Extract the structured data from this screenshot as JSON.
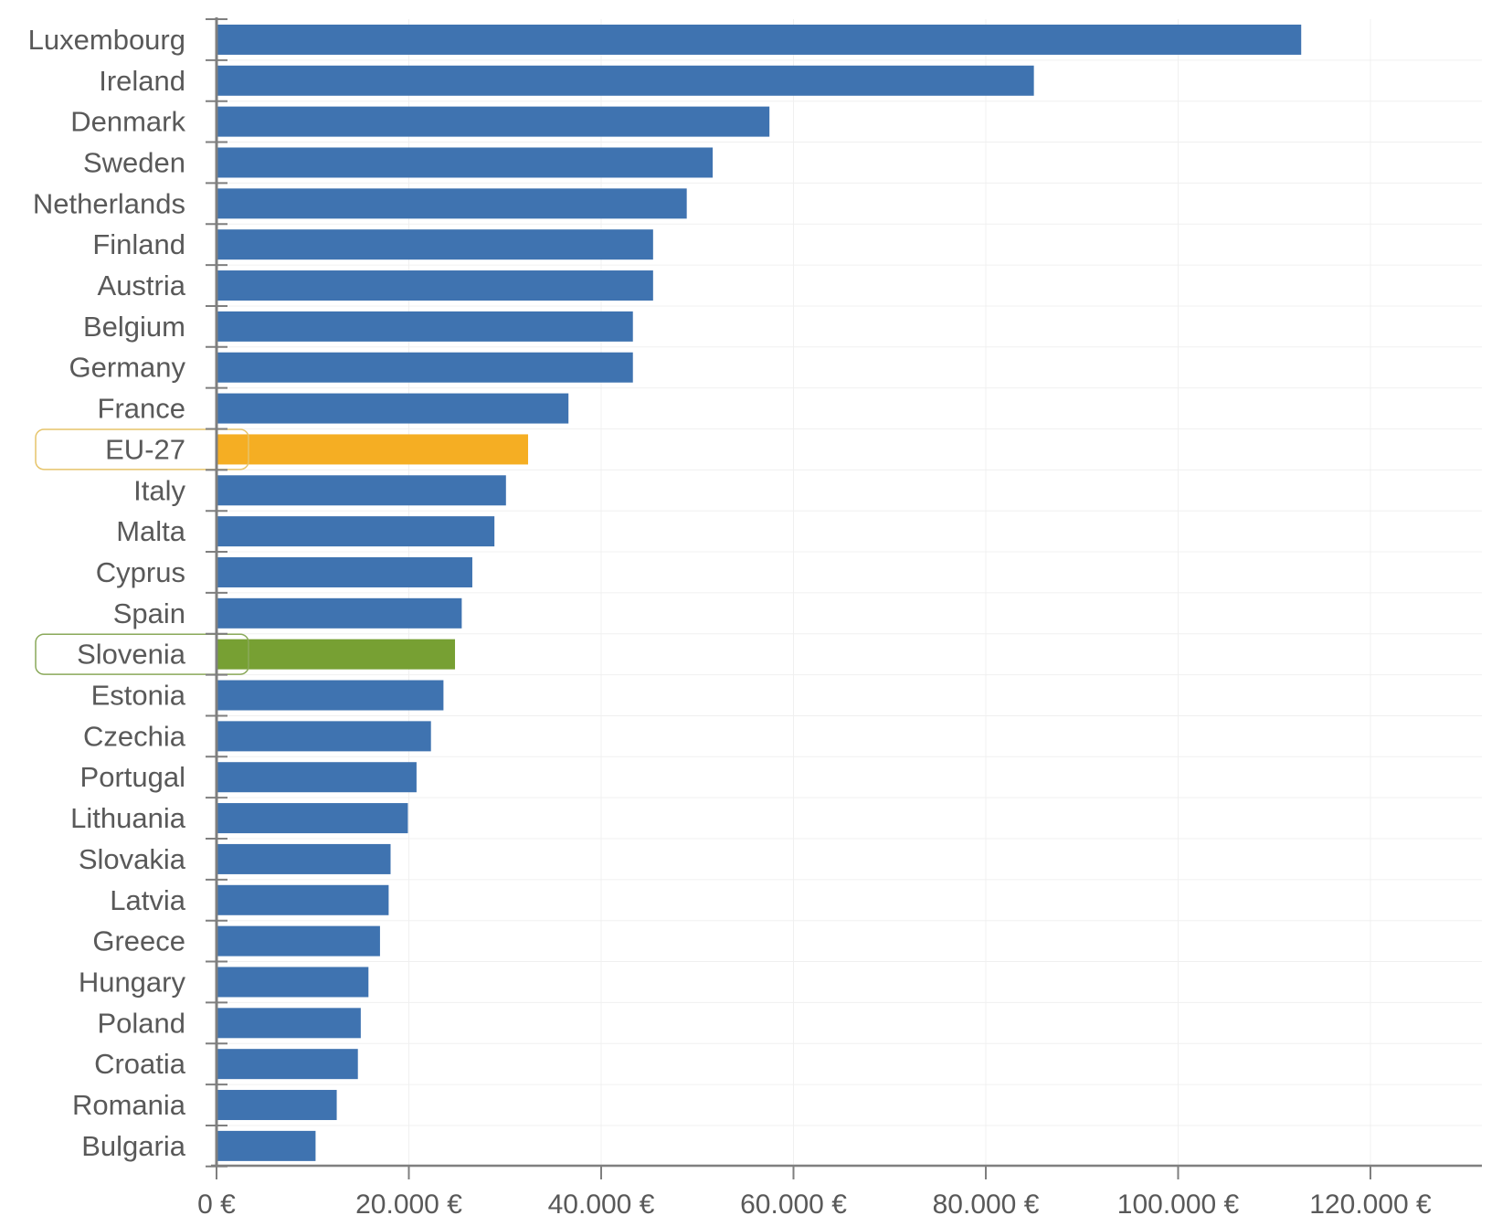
{
  "chart_data": {
    "type": "bar",
    "orientation": "horizontal",
    "title": "",
    "xlabel": "",
    "ylabel": "",
    "categories": [
      "Luxembourg",
      "Ireland",
      "Denmark",
      "Sweden",
      "Netherlands",
      "Finland",
      "Austria",
      "Belgium",
      "Germany",
      "France",
      "EU-27",
      "Italy",
      "Malta",
      "Cyprus",
      "Spain",
      "Slovenia",
      "Estonia",
      "Czechia",
      "Portugal",
      "Lithuania",
      "Slovakia",
      "Latvia",
      "Greece",
      "Hungary",
      "Poland",
      "Croatia",
      "Romania",
      "Bulgaria"
    ],
    "values": [
      112800,
      85000,
      57500,
      51600,
      48900,
      45400,
      45400,
      43300,
      43300,
      36600,
      32400,
      30100,
      28900,
      26600,
      25500,
      24800,
      23600,
      22300,
      20800,
      19900,
      18100,
      17900,
      17000,
      15800,
      15000,
      14700,
      12500,
      10300
    ],
    "xlim": [
      0,
      130000
    ],
    "xticks": [
      0,
      20000,
      40000,
      60000,
      80000,
      100000,
      120000
    ],
    "xtick_labels": [
      "0 €",
      "20.000 €",
      "40.000 €",
      "60.000 €",
      "80.000 €",
      "100.000 €",
      "120.000 €"
    ],
    "grid": true,
    "legend": "none",
    "colors": {
      "default": "#3f73b0",
      "highlight_eu": "#f5ae23",
      "highlight_slovenia": "#77a033",
      "eu_box_border": "#e6c46a",
      "slovenia_box_border": "#8aa95a",
      "axis": "#7f7f7f",
      "grid": "#f0f0f0",
      "text": "#595959"
    },
    "highlighted": {
      "EU-27": "highlight_eu",
      "Slovenia": "highlight_slovenia"
    }
  }
}
